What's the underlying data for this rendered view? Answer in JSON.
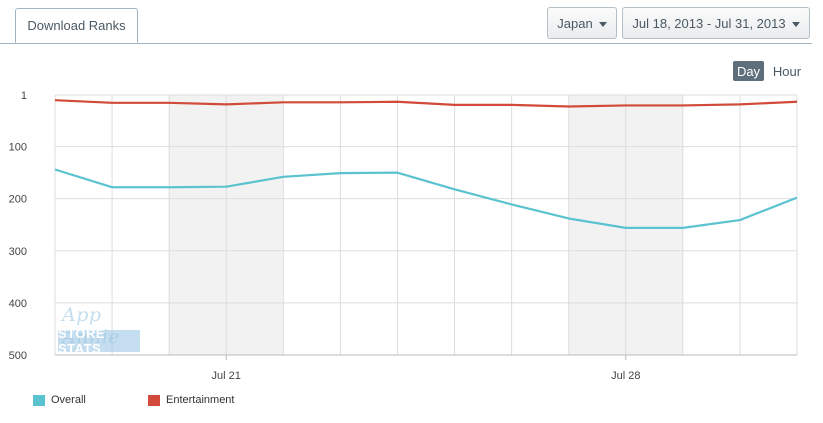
{
  "header": {
    "tab_label": "Download Ranks",
    "country": "Japan",
    "date_range": "Jul 18, 2013 - Jul 31, 2013"
  },
  "granularity": {
    "day": "Day",
    "hour": "Hour",
    "selected": "Day"
  },
  "watermark": {
    "line1": "App Annie",
    "line2": "STORE STATS"
  },
  "colors": {
    "overall": "#5bc3cf",
    "entertainment": "#d24a39",
    "weekend_band": "#f2f2f2",
    "grid": "#dddddd"
  },
  "chart_data": {
    "type": "line",
    "x": [
      "Jul 18",
      "Jul 19",
      "Jul 20",
      "Jul 21",
      "Jul 22",
      "Jul 23",
      "Jul 24",
      "Jul 25",
      "Jul 26",
      "Jul 27",
      "Jul 28",
      "Jul 29",
      "Jul 30",
      "Jul 31"
    ],
    "x_tick_labels": [
      {
        "x": "Jul 21",
        "label": "Jul 21"
      },
      {
        "x": "Jul 28",
        "label": "Jul 28"
      }
    ],
    "y_ticks": [
      1,
      100,
      200,
      300,
      400,
      500
    ],
    "ylim": [
      1,
      500
    ],
    "y_reversed": true,
    "grid": true,
    "weekend_bands": [
      [
        "Jul 20",
        "Jul 22"
      ],
      [
        "Jul 27",
        "Jul 29"
      ]
    ],
    "series": [
      {
        "name": "Overall",
        "color": "#5bc3cf",
        "values": [
          144,
          178,
          178,
          177,
          158,
          151,
          150,
          182,
          211,
          238,
          256,
          256,
          241,
          198
        ]
      },
      {
        "name": "Entertainment",
        "color": "#d24a39",
        "values": [
          11,
          16,
          16,
          19,
          15,
          15,
          14,
          20,
          20,
          23,
          21,
          21,
          19,
          14
        ]
      }
    ],
    "legend_position": "bottom-left"
  }
}
